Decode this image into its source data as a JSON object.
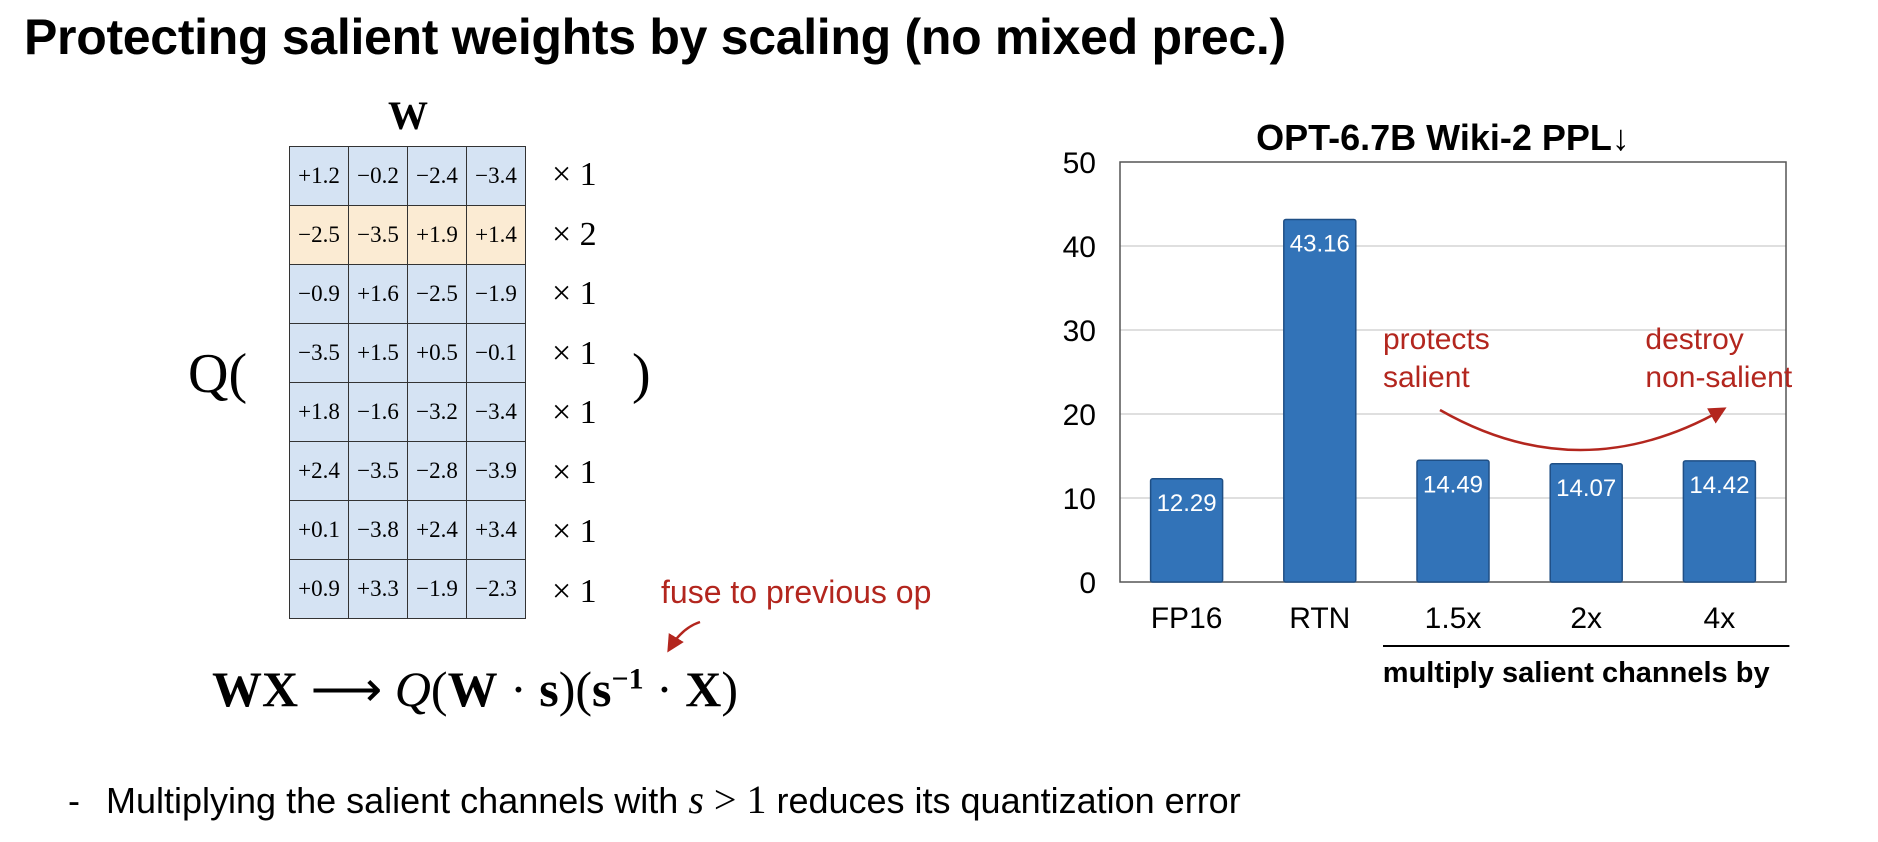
{
  "title": "Protecting salient weights by scaling (no mixed prec.)",
  "matrix": {
    "label": "W",
    "q_open": "Q(",
    "q_close": ")",
    "rows": [
      {
        "cells": [
          "+1.2",
          "−0.2",
          "−2.4",
          "−3.4"
        ],
        "multiplier": "× 1"
      },
      {
        "cells": [
          "−2.5",
          "−3.5",
          "+1.9",
          "+1.4"
        ],
        "multiplier": "× 2"
      },
      {
        "cells": [
          "−0.9",
          "+1.6",
          "−2.5",
          "−1.9"
        ],
        "multiplier": "× 1"
      },
      {
        "cells": [
          "−3.5",
          "+1.5",
          "+0.5",
          "−0.1"
        ],
        "multiplier": "× 1"
      },
      {
        "cells": [
          "+1.8",
          "−1.6",
          "−3.2",
          "−3.4"
        ],
        "multiplier": "× 1"
      },
      {
        "cells": [
          "+2.4",
          "−3.5",
          "−2.8",
          "−3.9"
        ],
        "multiplier": "× 1"
      },
      {
        "cells": [
          "+0.1",
          "−3.8",
          "+2.4",
          "+3.4"
        ],
        "multiplier": "× 1"
      },
      {
        "cells": [
          "+0.9",
          "+3.3",
          "−1.9",
          "−2.3"
        ],
        "multiplier": "× 1"
      }
    ],
    "highlight_row": 1,
    "colors": {
      "cell": "#d5e3f3",
      "highlight": "#fbebd3"
    }
  },
  "fuse_note": "fuse to previous op",
  "formula": {
    "lhs": "WX",
    "arrow": "⟶",
    "q": "Q",
    "open": "(",
    "w": "W",
    "dot1": " · ",
    "s": "s",
    "mid": ")(",
    "s2": "s",
    "exp": "−1",
    "dot2": " · ",
    "x": "X",
    "close": ")"
  },
  "bullet": {
    "dash": "-",
    "before": "Multiplying the salient channels with ",
    "math_var": "s",
    "math_rest": " > 1",
    "after": " reduces its quantization error"
  },
  "chart_data": {
    "type": "bar",
    "title": "OPT-6.7B Wiki-2 PPL↓",
    "categories": [
      "FP16",
      "RTN",
      "1.5x",
      "2x",
      "4x"
    ],
    "values": [
      12.29,
      43.16,
      14.49,
      14.07,
      14.42
    ],
    "value_labels": [
      "12.29",
      "43.16",
      "14.49",
      "14.07",
      "14.42"
    ],
    "ylim": [
      0,
      50
    ],
    "yticks": [
      0,
      10,
      20,
      30,
      40,
      50
    ],
    "grid": true,
    "bar_color": "#3273b8",
    "group_label": "multiply salient channels by",
    "group_categories": [
      "1.5x",
      "2x",
      "4x"
    ],
    "annotations": {
      "left": [
        "protects",
        "salient"
      ],
      "right": [
        "destroy",
        "non-salient"
      ],
      "color": "#b3261e"
    }
  }
}
